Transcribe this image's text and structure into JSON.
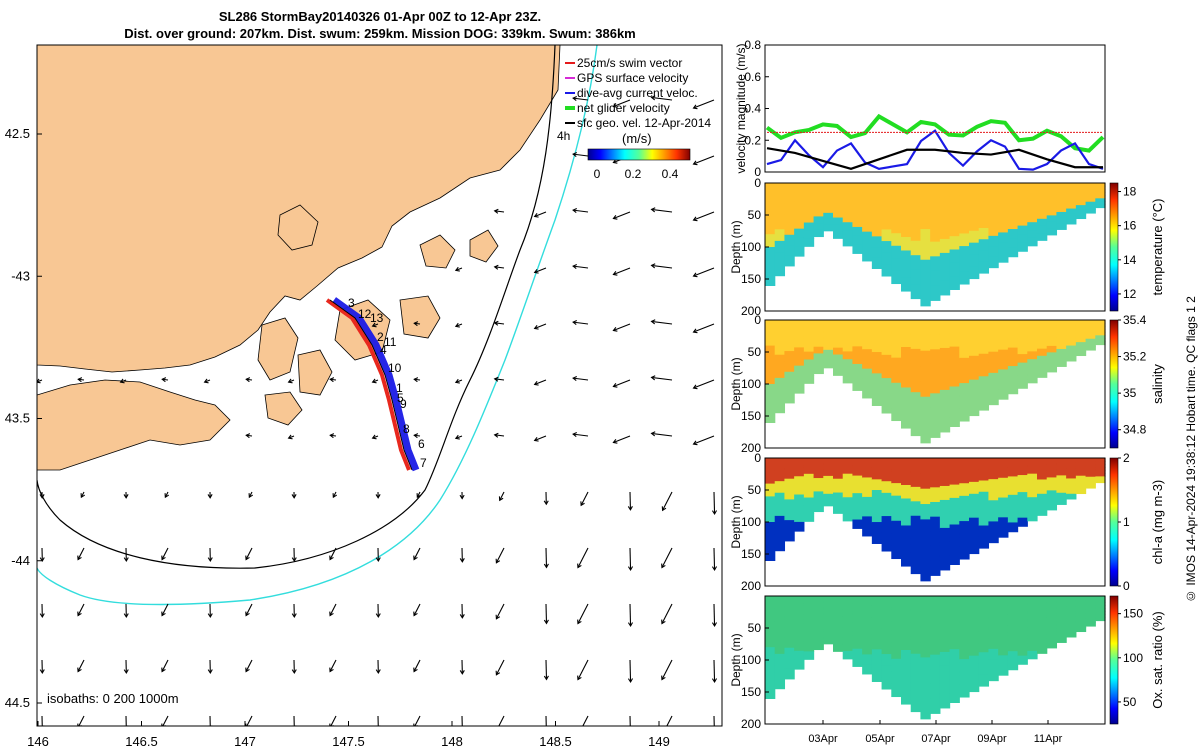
{
  "title_line1": "SL286 StormBay20140326 01-Apr 00Z to 12-Apr 23Z.",
  "title_line2": "Dist. over ground: 207km. Dist. swum: 259km. Mission DOG: 339km. Swum: 386km",
  "credit": "© IMOS 14-Apr-2024 19:38:12 Hobart time. QC flags 1  2",
  "map": {
    "lon_range": [
      146.0,
      149.3
    ],
    "lat_range": [
      -44.55,
      -42.25
    ],
    "lon_ticks": [
      146,
      146.5,
      147,
      147.5,
      148,
      148.5,
      149
    ],
    "lon_tick_labels": [
      "146",
      "146.5",
      "147",
      "147.5",
      "148",
      "148.5",
      "149"
    ],
    "lat_ticks": [
      -42.5,
      -43,
      -43.5,
      -44,
      -44.5
    ],
    "lat_tick_labels": [
      "42.5",
      "-43",
      "43.5",
      "-44",
      "44.5"
    ],
    "isobath_label": "isobaths: 0   200  1000m",
    "legend": [
      {
        "label": "25cm/s swim vector",
        "color": "#e41a1c"
      },
      {
        "label": "GPS surface velocity",
        "color": "#d62ad6"
      },
      {
        "label": "dive-avg current veloc.",
        "color": "#1a1ae6"
      },
      {
        "label": "net glider velocity",
        "color": "#22dd22"
      },
      {
        "label": "sfc geo. vel. 12-Apr-2014",
        "color": "#000000"
      }
    ],
    "colorbar_title": "(m/s)",
    "colorbar_ticks": [
      "0",
      "0.2",
      "0.4"
    ],
    "track_labels": [
      "3",
      "12",
      "13",
      "2",
      "11",
      "4",
      "10",
      "1",
      "5",
      "9",
      "8",
      "6",
      "7",
      "4h"
    ],
    "colors": {
      "land": "#f8c794",
      "isobath200": "#000000",
      "isobath1000": "#33dddd",
      "track_swim": "#e8281e",
      "track_current": "#1a1ae6"
    }
  },
  "chart_data": [
    {
      "type": "line",
      "title": "",
      "ylabel": "velocity magnitude (m/s)",
      "ylim": [
        0,
        0.8
      ],
      "yticks": [
        "0",
        "0.2",
        "0.4",
        "0.6",
        "0.8"
      ],
      "x": [
        1,
        2,
        3,
        4,
        5,
        6,
        7,
        8,
        9,
        10,
        11,
        12,
        13
      ],
      "series": [
        {
          "name": "net glider velocity",
          "color": "#22dd22",
          "values": [
            0.28,
            0.25,
            0.3,
            0.22,
            0.35,
            0.25,
            0.3,
            0.23,
            0.32,
            0.2,
            0.26,
            0.15,
            0.22
          ]
        },
        {
          "name": "dive-avg current veloc.",
          "color": "#1a1ae6",
          "values": [
            0.05,
            0.2,
            0.03,
            0.18,
            0.02,
            0.05,
            0.26,
            0.04,
            0.2,
            0.02,
            0.05,
            0.18,
            0.02
          ]
        },
        {
          "name": "sfc geo. vel.",
          "color": "#000000",
          "values": [
            0.15,
            0.12,
            0.07,
            0.02,
            0.08,
            0.14,
            0.14,
            0.12,
            0.11,
            0.14,
            0.08,
            0.03,
            0.03
          ]
        },
        {
          "name": "25cm/s swim",
          "color": "#e41a1c",
          "values": [
            0.25,
            0.25,
            0.25,
            0.25,
            0.25,
            0.25,
            0.25,
            0.25,
            0.25,
            0.25,
            0.25,
            0.25,
            0.25
          ]
        }
      ]
    },
    {
      "type": "heatmap",
      "ylabel": "Depth (m)",
      "ylim": [
        200,
        0
      ],
      "yticks": [
        "0",
        "50",
        "100",
        "150",
        "200"
      ],
      "colorbar_label": "temperature (°C)",
      "colorbar_ticks": [
        "12",
        "14",
        "16",
        "18"
      ],
      "clim": [
        11,
        18.5
      ]
    },
    {
      "type": "heatmap",
      "ylabel": "Depth (m)",
      "ylim": [
        200,
        0
      ],
      "yticks": [
        "0",
        "50",
        "100",
        "150",
        "200"
      ],
      "colorbar_label": "salinity",
      "colorbar_ticks": [
        "34.8",
        "35",
        "35.2",
        "35.4"
      ],
      "clim": [
        34.7,
        35.4
      ]
    },
    {
      "type": "heatmap",
      "ylabel": "Depth (m)",
      "ylim": [
        200,
        0
      ],
      "yticks": [
        "0",
        "50",
        "100",
        "150",
        "200"
      ],
      "colorbar_label": "chl-a (mg m-3)",
      "colorbar_ticks": [
        "0",
        "1",
        "2"
      ],
      "clim": [
        0,
        2
      ]
    },
    {
      "type": "heatmap",
      "ylabel": "Depth (m)",
      "ylim": [
        200,
        0
      ],
      "yticks": [
        "50",
        "100",
        "150",
        "200"
      ],
      "colorbar_label": "Ox. sat. ratio (%)",
      "colorbar_ticks": [
        "50",
        "100",
        "150"
      ],
      "clim": [
        25,
        170
      ]
    }
  ],
  "time_axis": {
    "labels": [
      "03Apr",
      "05Apr",
      "07Apr",
      "09Apr",
      "11Apr"
    ]
  }
}
